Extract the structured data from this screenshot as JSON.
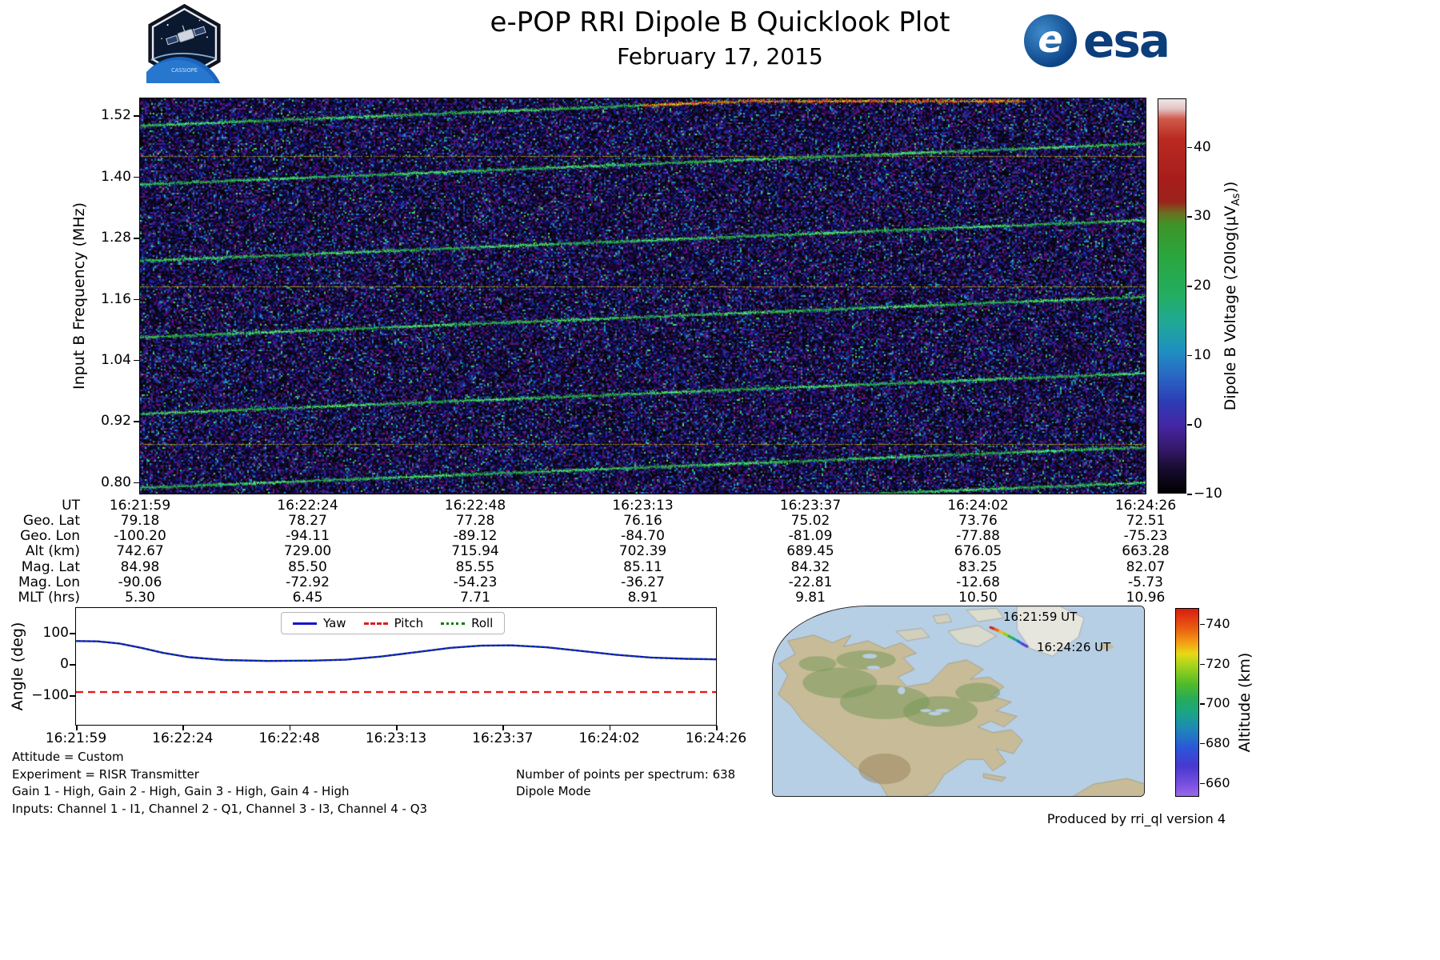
{
  "header": {
    "title": "e-POP RRI Dipole B Quicklook Plot",
    "subtitle": "February 17, 2015",
    "cassiope_badge": "CASSIOPE",
    "esa_wordmark": "esa"
  },
  "spectrogram": {
    "ylabel": "Input B Frequency (MHz)",
    "yticks": [
      "1.52",
      "1.40",
      "1.28",
      "1.16",
      "1.04",
      "0.92",
      "0.80"
    ],
    "colorbar_label_prefix": "Dipole B Voltage (20log(µV",
    "colorbar_label_sub": "As",
    "colorbar_label_suffix": "))",
    "colorbar_ticks": [
      "40",
      "30",
      "20",
      "10",
      "0",
      "−10"
    ]
  },
  "ephemeris": {
    "rows": [
      {
        "label": "UT",
        "values": [
          "16:21:59",
          "16:22:24",
          "16:22:48",
          "16:23:13",
          "16:23:37",
          "16:24:02",
          "16:24:26"
        ]
      },
      {
        "label": "Geo. Lat",
        "values": [
          "79.18",
          "78.27",
          "77.28",
          "76.16",
          "75.02",
          "73.76",
          "72.51"
        ]
      },
      {
        "label": "Geo. Lon",
        "values": [
          "-100.20",
          "-94.11",
          "-89.12",
          "-84.70",
          "-81.09",
          "-77.88",
          "-75.23"
        ]
      },
      {
        "label": "Alt (km)",
        "values": [
          "742.67",
          "729.00",
          "715.94",
          "702.39",
          "689.45",
          "676.05",
          "663.28"
        ]
      },
      {
        "label": "Mag. Lat",
        "values": [
          "84.98",
          "85.50",
          "85.55",
          "85.11",
          "84.32",
          "83.25",
          "82.07"
        ]
      },
      {
        "label": "Mag. Lon",
        "values": [
          "-90.06",
          "-72.92",
          "-54.23",
          "-36.27",
          "-22.81",
          "-12.68",
          "-5.73"
        ]
      },
      {
        "label": "MLT (hrs)",
        "values": [
          "5.30",
          "6.45",
          "7.71",
          "8.91",
          "9.81",
          "10.50",
          "10.96"
        ]
      }
    ]
  },
  "angle_plot": {
    "ylabel": "Angle (deg)",
    "yticks": [
      "100",
      "0",
      "−100"
    ],
    "xticks": [
      "16:21:59",
      "16:22:24",
      "16:22:48",
      "16:23:13",
      "16:23:37",
      "16:24:02",
      "16:24:26"
    ],
    "legend": [
      "Yaw",
      "Pitch",
      "Roll"
    ]
  },
  "footer": {
    "line1": "Attitude = Custom",
    "line2": "Experiment = RISR Transmitter",
    "line3": "Gain 1 - High, Gain 2 - High, Gain 3 - High, Gain 4 - High",
    "line4": "Inputs: Channel 1 - I1, Channel 2 - Q1, Channel 3 - I3, Channel 4 - Q3",
    "points_per_spectrum": "Number of points per spectrum: 638",
    "dipole_mode": "Dipole Mode",
    "produced_by": "Produced by rri_ql version 4"
  },
  "map": {
    "start_label": "16:21:59 UT",
    "end_label": "16:24:26 UT",
    "colorbar_label": "Altitude (km)",
    "colorbar_ticks": [
      "740",
      "720",
      "700",
      "680",
      "660"
    ]
  },
  "chart_data": [
    {
      "type": "heatmap",
      "name": "rri-dipole-b-spectrogram",
      "ylabel": "Input B Frequency (MHz)",
      "x_range_ut": [
        "16:21:59",
        "16:24:26"
      ],
      "duration_s": 147,
      "ylim": [
        0.778,
        1.553
      ],
      "yticks": [
        1.52,
        1.4,
        1.28,
        1.16,
        1.04,
        0.92,
        0.8
      ],
      "colorbar": {
        "label": "Dipole B Voltage (20log(µV_As))",
        "ticks": [
          40,
          30,
          20,
          10,
          0,
          -10
        ],
        "range": [
          -10,
          47
        ]
      },
      "background": "dense dark blue/purple receiver noise",
      "features": {
        "stripe_slope_mhz_per_width": 0.08,
        "stripe_intercepts_mhz": [
          0.72,
          0.79,
          0.935,
          1.085,
          1.235,
          1.385,
          1.5
        ],
        "stripe_color": "green",
        "hot_segment": {
          "stripe_index": 6,
          "x_start_frac": 0.5,
          "x_end_frac": 0.88,
          "colors": [
            "red",
            "orange",
            "yellow"
          ]
        },
        "faint_horizontal_lines_mhz": [
          1.44,
          1.185,
          0.875
        ]
      }
    },
    {
      "type": "line",
      "name": "attitude-angles",
      "ylabel": "Angle (deg)",
      "duration_s": 147,
      "ylim": [
        -195,
        180
      ],
      "yticks": [
        100,
        0,
        -100
      ],
      "xticks": [
        "16:21:59",
        "16:22:24",
        "16:22:48",
        "16:23:13",
        "16:23:37",
        "16:24:02",
        "16:24:26"
      ],
      "legend_position": "upper center",
      "series": [
        {
          "name": "Yaw",
          "style": "solid",
          "color": "#1414cc",
          "x_s": [
            0,
            5,
            10,
            15,
            20,
            26,
            34,
            44,
            54,
            62,
            70,
            78,
            86,
            93,
            100,
            108,
            116,
            124,
            132,
            140,
            147
          ],
          "values": [
            74,
            73,
            66,
            52,
            36,
            22,
            13,
            10,
            11,
            14,
            24,
            38,
            52,
            59,
            60,
            54,
            42,
            30,
            21,
            17,
            15
          ]
        },
        {
          "name": "Pitch",
          "style": "dashed",
          "color": "#e21b1b",
          "value": -90
        },
        {
          "name": "Roll",
          "style": "dotted",
          "color": "#0c7a0c",
          "overlaps": "Yaw",
          "x_s": [
            0,
            5,
            10,
            15,
            20,
            26,
            34,
            44,
            54,
            62,
            70,
            78,
            86,
            93,
            100,
            108,
            116,
            124,
            132,
            140,
            147
          ],
          "values": [
            74,
            73,
            66,
            52,
            36,
            22,
            13,
            10,
            11,
            14,
            24,
            38,
            52,
            59,
            60,
            54,
            42,
            30,
            21,
            17,
            15
          ]
        }
      ]
    },
    {
      "type": "map",
      "name": "ground-track-map",
      "region": "North America / Arctic",
      "track_labels": [
        "16:21:59 UT",
        "16:24:26 UT"
      ],
      "track_alt_km": [
        742.67,
        663.28
      ],
      "colorbar": {
        "label": "Altitude (km)",
        "ticks": [
          740,
          720,
          700,
          680,
          660
        ],
        "range": [
          653,
          748
        ]
      }
    }
  ]
}
